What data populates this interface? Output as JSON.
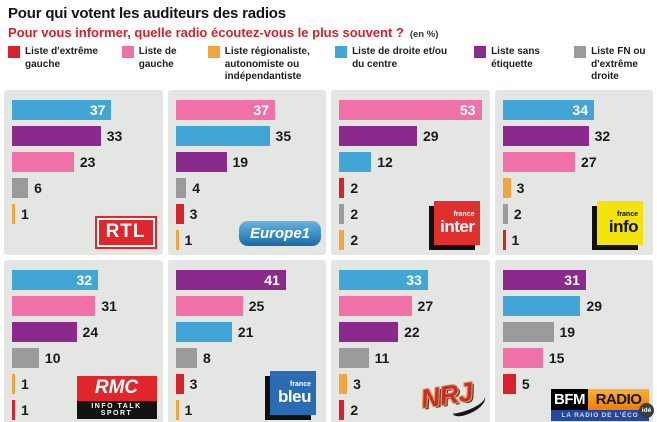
{
  "header": {
    "title": "Pour qui votent les auditeurs des radios",
    "subtitle": "Pour vous informer, quelle radio écoutez-vous le plus souvent ?",
    "unit_note": "(en %)"
  },
  "colors": {
    "far_left": "#d7222b",
    "left": "#ef71a8",
    "regionalist": "#f0a63c",
    "right_center": "#41a5d6",
    "no_label": "#8a2a8c",
    "fn": "#9b9b9b"
  },
  "legend": [
    {
      "key": "far_left",
      "label": "Liste d'extrême gauche",
      "color": "#d7222b"
    },
    {
      "key": "left",
      "label": "Liste de gauche",
      "color": "#ef71a8"
    },
    {
      "key": "regionalist",
      "label": "Liste régionaliste, autonomiste ou indépendantiste",
      "color": "#f0a63c"
    },
    {
      "key": "right_center",
      "label": "Liste de droite et/ou du centre",
      "color": "#41a5d6"
    },
    {
      "key": "no_label",
      "label": "Liste sans étiquette",
      "color": "#8a2a8c"
    },
    {
      "key": "fn",
      "label": "Liste FN ou d'extrême droite",
      "color": "#9b9b9b"
    }
  ],
  "chart_data": {
    "type": "bar",
    "orientation": "horizontal",
    "unit": "%",
    "value_scale_max": 53,
    "grid": false,
    "legend_position": "top",
    "panels": [
      {
        "station": "RTL",
        "logo": "rtl",
        "bars": [
          {
            "party": "right_center",
            "value": 37
          },
          {
            "party": "no_label",
            "value": 33
          },
          {
            "party": "left",
            "value": 23
          },
          {
            "party": "fn",
            "value": 6
          },
          {
            "party": "regionalist",
            "value": 1
          }
        ]
      },
      {
        "station": "Europe 1",
        "logo": "europe1",
        "bars": [
          {
            "party": "left",
            "value": 37
          },
          {
            "party": "right_center",
            "value": 35
          },
          {
            "party": "no_label",
            "value": 19
          },
          {
            "party": "fn",
            "value": 4
          },
          {
            "party": "far_left",
            "value": 3
          },
          {
            "party": "regionalist",
            "value": 1
          }
        ]
      },
      {
        "station": "France Inter",
        "logo": "inter",
        "bars": [
          {
            "party": "left",
            "value": 53
          },
          {
            "party": "no_label",
            "value": 29
          },
          {
            "party": "right_center",
            "value": 12
          },
          {
            "party": "far_left",
            "value": 2
          },
          {
            "party": "fn",
            "value": 2
          },
          {
            "party": "regionalist",
            "value": 2
          }
        ]
      },
      {
        "station": "France Info",
        "logo": "info",
        "bars": [
          {
            "party": "right_center",
            "value": 34
          },
          {
            "party": "no_label",
            "value": 32
          },
          {
            "party": "left",
            "value": 27
          },
          {
            "party": "regionalist",
            "value": 3
          },
          {
            "party": "fn",
            "value": 2
          },
          {
            "party": "far_left",
            "value": 1
          }
        ]
      },
      {
        "station": "RMC",
        "logo": "rmc",
        "bars": [
          {
            "party": "right_center",
            "value": 32
          },
          {
            "party": "left",
            "value": 31
          },
          {
            "party": "no_label",
            "value": 24
          },
          {
            "party": "fn",
            "value": 10
          },
          {
            "party": "regionalist",
            "value": 1
          },
          {
            "party": "far_left",
            "value": 1
          }
        ]
      },
      {
        "station": "France Bleu",
        "logo": "bleu",
        "bars": [
          {
            "party": "no_label",
            "value": 41
          },
          {
            "party": "left",
            "value": 25
          },
          {
            "party": "right_center",
            "value": 21
          },
          {
            "party": "fn",
            "value": 8
          },
          {
            "party": "far_left",
            "value": 3
          },
          {
            "party": "regionalist",
            "value": 1
          }
        ]
      },
      {
        "station": "NRJ",
        "logo": "nrj",
        "bars": [
          {
            "party": "right_center",
            "value": 33
          },
          {
            "party": "left",
            "value": 27
          },
          {
            "party": "no_label",
            "value": 22
          },
          {
            "party": "fn",
            "value": 11
          },
          {
            "party": "regionalist",
            "value": 3
          },
          {
            "party": "far_left",
            "value": 2
          }
        ]
      },
      {
        "station": "BFM Radio",
        "logo": "bfm",
        "bars": [
          {
            "party": "no_label",
            "value": 31
          },
          {
            "party": "right_center",
            "value": 29
          },
          {
            "party": "fn",
            "value": 19
          },
          {
            "party": "left",
            "value": 15
          },
          {
            "party": "far_left",
            "value": 5
          }
        ]
      }
    ]
  },
  "logos": {
    "rtl": {
      "text": "RTL"
    },
    "europe1": {
      "text": "Europe1"
    },
    "inter": {
      "top": "france",
      "main": "inter"
    },
    "info": {
      "top": "france",
      "main": "info"
    },
    "rmc": {
      "text": "RMC",
      "sub": "INFO TALK SPORT"
    },
    "bleu": {
      "top": "france",
      "main": "bleu"
    },
    "nrj": {
      "text": "NRJ"
    },
    "bfm": {
      "left": "BFM",
      "right": "RADIO",
      "sub": "LA RADIO DE L'ÉCO"
    }
  },
  "credit": "idé"
}
